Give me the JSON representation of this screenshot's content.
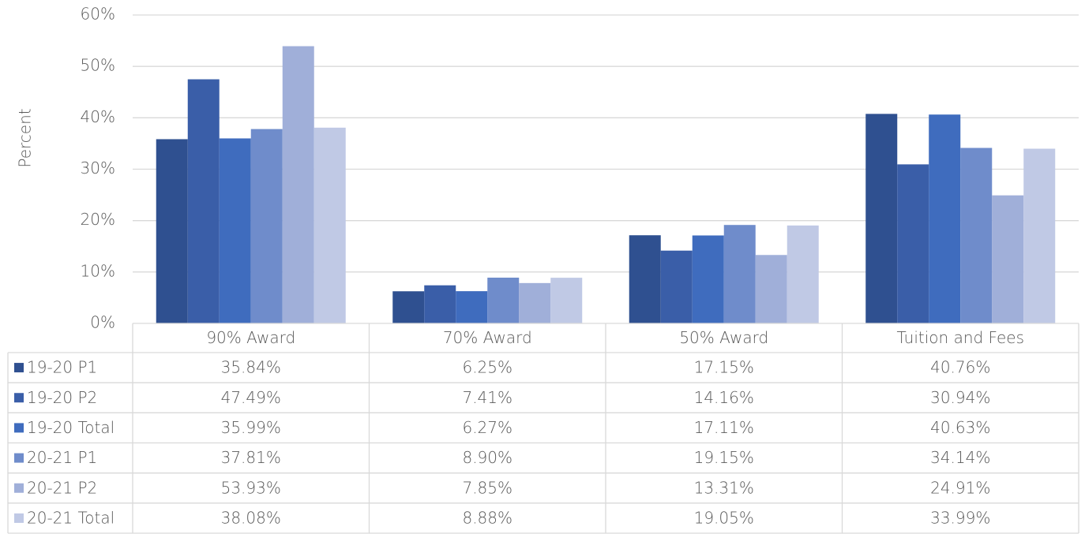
{
  "chart_data": {
    "type": "bar",
    "y_label": "Percent",
    "categories": [
      "90% Award",
      "70% Award",
      "50% Award",
      "Tuition and Fees"
    ],
    "series": [
      {
        "name": "19-20 P1",
        "color": "#2f5090",
        "values": [
          35.84,
          6.25,
          17.15,
          40.76
        ],
        "value_labels": [
          "35.84%",
          "6.25%",
          "17.15%",
          "40.76%"
        ]
      },
      {
        "name": "19-20 P2",
        "color": "#3a5ea8",
        "values": [
          47.49,
          7.41,
          14.16,
          30.94
        ],
        "value_labels": [
          "47.49%",
          "7.41%",
          "14.16%",
          "30.94%"
        ]
      },
      {
        "name": "19-20 Total",
        "color": "#3f6cbe",
        "values": [
          35.99,
          6.27,
          17.11,
          40.63
        ],
        "value_labels": [
          "35.99%",
          "6.27%",
          "17.11%",
          "40.63%"
        ]
      },
      {
        "name": "20-21 P1",
        "color": "#6f8ccb",
        "values": [
          37.81,
          8.9,
          19.15,
          34.14
        ],
        "value_labels": [
          "37.81%",
          "8.90%",
          "19.15%",
          "34.14%"
        ]
      },
      {
        "name": "20-21 P2",
        "color": "#a0afd9",
        "values": [
          53.93,
          7.85,
          13.31,
          24.91
        ],
        "value_labels": [
          "53.93%",
          "7.85%",
          "13.31%",
          "24.91%"
        ]
      },
      {
        "name": "20-21 Total",
        "color": "#c0c9e5",
        "values": [
          38.08,
          8.88,
          19.05,
          33.99
        ],
        "value_labels": [
          "38.08%",
          "8.88%",
          "19.05%",
          "33.99%"
        ]
      }
    ],
    "ylim": [
      0,
      60
    ],
    "yticks": [
      {
        "value": 0,
        "label": "0%"
      },
      {
        "value": 10,
        "label": "10%"
      },
      {
        "value": 20,
        "label": "20%"
      },
      {
        "value": 30,
        "label": "30%"
      },
      {
        "value": 40,
        "label": "40%"
      },
      {
        "value": 50,
        "label": "50%"
      },
      {
        "value": 60,
        "label": "60%"
      }
    ],
    "grid": true
  }
}
